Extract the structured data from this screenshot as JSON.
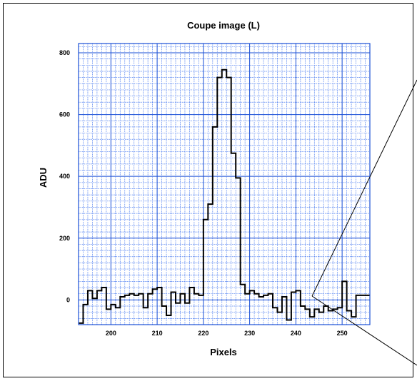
{
  "chart_data": {
    "type": "line",
    "step": true,
    "title": "Coupe image (L)",
    "xlabel": "Pixels",
    "ylabel": "ADU",
    "xlim": [
      193,
      256
    ],
    "ylim": [
      -80,
      830
    ],
    "x_ticks": [
      200,
      210,
      220,
      230,
      240,
      250
    ],
    "y_ticks": [
      0,
      200,
      400,
      600,
      800
    ],
    "x_tick_labels": [
      "200",
      "210",
      "220",
      "230",
      "240",
      "250"
    ],
    "y_tick_labels": [
      "0",
      "200",
      "400",
      "600",
      "800"
    ],
    "grid": true,
    "grid_minor_x": 1,
    "grid_minor_y": 20,
    "series": [
      {
        "x": [
          193,
          194,
          195,
          196,
          197,
          198,
          199,
          200,
          201,
          202,
          203,
          204,
          205,
          206,
          207,
          208,
          209,
          210,
          211,
          212,
          213,
          214,
          215,
          216,
          217,
          218,
          219,
          220,
          221,
          222,
          223,
          224,
          225,
          226,
          227,
          228,
          229,
          230,
          231,
          232,
          233,
          234,
          235,
          236,
          237,
          238,
          239,
          240,
          241,
          242,
          243,
          244,
          245,
          246,
          247,
          248,
          249,
          250,
          251,
          252,
          253,
          254,
          255,
          256
        ],
        "y": [
          -75,
          -15,
          30,
          5,
          30,
          40,
          -30,
          -15,
          -25,
          10,
          15,
          20,
          15,
          20,
          -25,
          20,
          35,
          40,
          -20,
          -50,
          25,
          -10,
          20,
          -10,
          40,
          20,
          15,
          260,
          310,
          560,
          720,
          745,
          720,
          475,
          395,
          50,
          20,
          30,
          20,
          10,
          15,
          20,
          -25,
          -40,
          10,
          -65,
          25,
          30,
          -20,
          -30,
          -55,
          -30,
          -40,
          -20,
          -35,
          -30,
          -25,
          60,
          -35,
          -55,
          15,
          15,
          15,
          15
        ]
      }
    ],
    "colors": {
      "grid_major": "#1a4fd6",
      "grid_minor": "#4f7ff0",
      "line": "#000000"
    }
  }
}
